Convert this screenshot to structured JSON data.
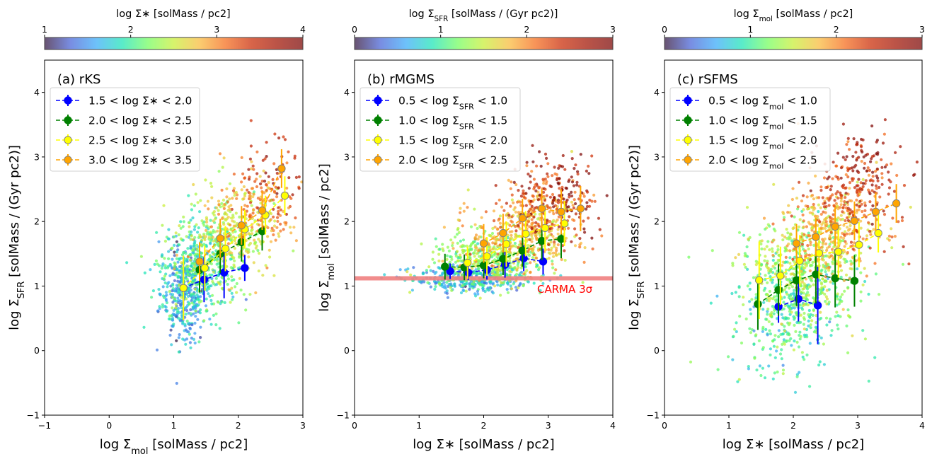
{
  "chart_data": [
    {
      "type": "scatter",
      "panel_label": "(a) rKS",
      "xlabel": "log Σmol [solMass / pc2]",
      "ylabel": "log ΣSFR [solMass / (Gyr pc2)]",
      "xlim": [
        -1,
        3
      ],
      "ylim": [
        -1,
        4.5
      ],
      "xticks": [
        -1,
        0,
        1,
        2,
        3
      ],
      "yticks": [
        -1,
        0,
        1,
        2,
        3,
        4
      ],
      "colorbar": {
        "label": "log Σ* [solMass / pc2]",
        "range": [
          1,
          4
        ],
        "ticks": [
          1,
          2,
          3,
          4
        ],
        "colormap": "turbo"
      },
      "legend_position": "upper-left",
      "grid": false,
      "scatter_cloud": {
        "color_range": [
          1,
          4
        ],
        "groups": [
          {
            "x_center": 1.15,
            "y_center": 0.9,
            "x_spread": 0.18,
            "y_spread": 0.35,
            "color_value": 1.6,
            "count": 350
          },
          {
            "x_center": 1.4,
            "y_center": 1.3,
            "x_spread": 0.3,
            "y_spread": 0.4,
            "color_value": 2.0,
            "count": 450
          },
          {
            "x_center": 1.9,
            "y_center": 1.8,
            "x_spread": 0.35,
            "y_spread": 0.35,
            "color_value": 2.5,
            "count": 300
          },
          {
            "x_center": 2.35,
            "y_center": 2.3,
            "x_spread": 0.3,
            "y_spread": 0.35,
            "color_value": 3.1,
            "count": 150
          },
          {
            "x_center": 2.55,
            "y_center": 2.8,
            "x_spread": 0.25,
            "y_spread": 0.35,
            "color_value": 3.6,
            "count": 40
          }
        ]
      },
      "series": [
        {
          "name": "1.5 < log Σ* < 2.0",
          "color": "#0000ff",
          "points": [
            {
              "x": 1.15,
              "y": 0.97,
              "err": 0.5
            },
            {
              "x": 1.47,
              "y": 1.1,
              "err": 0.35
            },
            {
              "x": 1.78,
              "y": 1.21,
              "err": 0.4
            },
            {
              "x": 2.1,
              "y": 1.28,
              "err": 0.2
            }
          ]
        },
        {
          "name": "2.0 < log Σ* < 2.5",
          "color": "#008000",
          "points": [
            {
              "x": 1.4,
              "y": 1.25,
              "err": 0.35
            },
            {
              "x": 1.72,
              "y": 1.5,
              "err": 0.3
            },
            {
              "x": 2.05,
              "y": 1.68,
              "err": 0.3
            },
            {
              "x": 2.37,
              "y": 1.85,
              "err": 0.3
            }
          ]
        },
        {
          "name": "2.5 < log Σ* < 3.0",
          "color": "#ffff00",
          "points": [
            {
              "x": 1.15,
              "y": 0.97,
              "err": 0.5
            },
            {
              "x": 1.48,
              "y": 1.28,
              "err": 0.35
            },
            {
              "x": 1.8,
              "y": 1.58,
              "err": 0.35
            },
            {
              "x": 2.1,
              "y": 1.88,
              "err": 0.3
            },
            {
              "x": 2.42,
              "y": 2.1,
              "err": 0.3
            },
            {
              "x": 2.72,
              "y": 2.4,
              "err": 0.3
            }
          ]
        },
        {
          "name": "3.0 < log Σ* < 3.5",
          "color": "#ffa500",
          "points": [
            {
              "x": 1.4,
              "y": 1.38,
              "err": 0.3
            },
            {
              "x": 1.72,
              "y": 1.74,
              "err": 0.3
            },
            {
              "x": 2.05,
              "y": 1.94,
              "err": 0.3
            },
            {
              "x": 2.37,
              "y": 2.17,
              "err": 0.3
            },
            {
              "x": 2.67,
              "y": 2.82,
              "err": 0.3
            }
          ]
        }
      ]
    },
    {
      "type": "scatter",
      "panel_label": "(b) rMGMS",
      "xlabel": "log Σ* [solMass / pc2]",
      "ylabel": "log Σmol [solMass / pc2]",
      "xlim": [
        0,
        4
      ],
      "ylim": [
        -1,
        4.5
      ],
      "xticks": [
        0,
        1,
        2,
        3,
        4
      ],
      "yticks": [
        -1,
        0,
        1,
        2,
        3,
        4
      ],
      "colorbar": {
        "label": "log ΣSFR [solMass / (Gyr pc2)]",
        "range": [
          0,
          3
        ],
        "ticks": [
          0,
          1,
          2,
          3
        ],
        "colormap": "turbo"
      },
      "legend_position": "upper-left",
      "grid": false,
      "hline": {
        "y": 1.12,
        "color": "#f08080"
      },
      "annotation": "CARMA 3σ",
      "scatter_cloud": {
        "color_range": [
          0,
          3
        ],
        "groups": [
          {
            "x_center": 1.8,
            "y_center": 1.1,
            "x_spread": 0.45,
            "y_spread": 0.1,
            "color_value": 0.7,
            "count": 350
          },
          {
            "x_center": 2.1,
            "y_center": 1.4,
            "x_spread": 0.45,
            "y_spread": 0.2,
            "color_value": 1.3,
            "count": 400
          },
          {
            "x_center": 2.6,
            "y_center": 1.8,
            "x_spread": 0.4,
            "y_spread": 0.3,
            "color_value": 1.8,
            "count": 350
          },
          {
            "x_center": 3.0,
            "y_center": 2.3,
            "x_spread": 0.35,
            "y_spread": 0.3,
            "color_value": 2.3,
            "count": 200
          },
          {
            "x_center": 3.2,
            "y_center": 2.5,
            "x_spread": 0.3,
            "y_spread": 0.35,
            "color_value": 2.9,
            "count": 80
          }
        ]
      },
      "series": [
        {
          "name": "0.5 < log ΣSFR < 1.0",
          "color": "#0000ff",
          "points": [
            {
              "x": 1.48,
              "y": 1.23,
              "err": 0.12
            },
            {
              "x": 1.76,
              "y": 1.21,
              "err": 0.12
            },
            {
              "x": 2.05,
              "y": 1.25,
              "err": 0.15
            },
            {
              "x": 2.33,
              "y": 1.33,
              "err": 0.2
            },
            {
              "x": 2.62,
              "y": 1.43,
              "err": 0.2
            },
            {
              "x": 2.92,
              "y": 1.38,
              "err": 0.2
            }
          ]
        },
        {
          "name": "1.0 < log ΣSFR < 1.5",
          "color": "#008000",
          "points": [
            {
              "x": 1.4,
              "y": 1.3,
              "err": 0.2
            },
            {
              "x": 1.7,
              "y": 1.29,
              "err": 0.2
            },
            {
              "x": 2.0,
              "y": 1.32,
              "err": 0.2
            },
            {
              "x": 2.3,
              "y": 1.42,
              "err": 0.25
            },
            {
              "x": 2.6,
              "y": 1.55,
              "err": 0.25
            },
            {
              "x": 2.9,
              "y": 1.7,
              "err": 0.3
            },
            {
              "x": 3.2,
              "y": 1.73,
              "err": 0.3
            }
          ]
        },
        {
          "name": "1.5 < log ΣSFR < 2.0",
          "color": "#ffff00",
          "points": [
            {
              "x": 1.75,
              "y": 1.36,
              "err": 0.25
            },
            {
              "x": 2.05,
              "y": 1.46,
              "err": 0.3
            },
            {
              "x": 2.35,
              "y": 1.65,
              "err": 0.35
            },
            {
              "x": 2.65,
              "y": 1.81,
              "err": 0.35
            },
            {
              "x": 2.95,
              "y": 1.9,
              "err": 0.35
            },
            {
              "x": 3.25,
              "y": 1.97,
              "err": 0.35
            }
          ]
        },
        {
          "name": "2.0 < log ΣSFR < 2.5",
          "color": "#ffa500",
          "points": [
            {
              "x": 2.0,
              "y": 1.66,
              "err": 0.3
            },
            {
              "x": 2.3,
              "y": 1.82,
              "err": 0.3
            },
            {
              "x": 2.6,
              "y": 2.05,
              "err": 0.3
            },
            {
              "x": 2.9,
              "y": 2.2,
              "err": 0.3
            },
            {
              "x": 3.2,
              "y": 2.15,
              "err": 0.35
            },
            {
              "x": 3.5,
              "y": 2.2,
              "err": 0.35
            }
          ]
        }
      ]
    },
    {
      "type": "scatter",
      "panel_label": "(c) rSFMS",
      "xlabel": "log Σ* [solMass / pc2]",
      "ylabel": "log ΣSFR [solMass / (Gyr pc2)]",
      "xlim": [
        0,
        4
      ],
      "ylim": [
        -1,
        4.5
      ],
      "xticks": [
        0,
        1,
        2,
        3,
        4
      ],
      "yticks": [
        -1,
        0,
        1,
        2,
        3,
        4
      ],
      "colorbar": {
        "label": "log Σmol [solMass / pc2]",
        "range": [
          0,
          3
        ],
        "ticks": [
          0,
          1,
          2,
          3
        ],
        "colormap": "turbo"
      },
      "legend_position": "upper-left",
      "grid": false,
      "scatter_cloud": {
        "color_range": [
          0,
          3
        ],
        "groups": [
          {
            "x_center": 1.9,
            "y_center": 0.5,
            "x_spread": 0.45,
            "y_spread": 0.45,
            "color_value": 1.0,
            "count": 300
          },
          {
            "x_center": 2.1,
            "y_center": 1.2,
            "x_spread": 0.45,
            "y_spread": 0.4,
            "color_value": 1.3,
            "count": 450
          },
          {
            "x_center": 2.5,
            "y_center": 1.8,
            "x_spread": 0.4,
            "y_spread": 0.35,
            "color_value": 1.8,
            "count": 350
          },
          {
            "x_center": 2.9,
            "y_center": 2.4,
            "x_spread": 0.35,
            "y_spread": 0.35,
            "color_value": 2.3,
            "count": 200
          },
          {
            "x_center": 3.1,
            "y_center": 2.8,
            "x_spread": 0.3,
            "y_spread": 0.35,
            "color_value": 2.8,
            "count": 70
          }
        ]
      },
      "series": [
        {
          "name": "0.5 < log Σmol < 1.0",
          "color": "#0000ff",
          "points": [
            {
              "x": 1.77,
              "y": 0.68,
              "err": 0.25
            },
            {
              "x": 2.08,
              "y": 0.8,
              "err": 0.35
            },
            {
              "x": 2.38,
              "y": 0.7,
              "err": 0.6
            }
          ]
        },
        {
          "name": "1.0 < log Σmol < 1.5",
          "color": "#008000",
          "points": [
            {
              "x": 1.45,
              "y": 0.72,
              "err": 0.4
            },
            {
              "x": 1.77,
              "y": 0.94,
              "err": 0.4
            },
            {
              "x": 2.05,
              "y": 1.09,
              "err": 0.4
            },
            {
              "x": 2.35,
              "y": 1.18,
              "err": 0.45
            },
            {
              "x": 2.65,
              "y": 1.12,
              "err": 0.45
            },
            {
              "x": 2.95,
              "y": 1.08,
              "err": 0.4
            }
          ]
        },
        {
          "name": "1.5 < log Σmol < 2.0",
          "color": "#ffff00",
          "points": [
            {
              "x": 1.47,
              "y": 1.09,
              "err": 0.6
            },
            {
              "x": 1.8,
              "y": 1.16,
              "err": 0.45
            },
            {
              "x": 2.1,
              "y": 1.39,
              "err": 0.4
            },
            {
              "x": 2.4,
              "y": 1.51,
              "err": 0.4
            },
            {
              "x": 2.7,
              "y": 1.53,
              "err": 0.4
            },
            {
              "x": 3.02,
              "y": 1.64,
              "err": 0.35
            },
            {
              "x": 3.32,
              "y": 1.82,
              "err": 0.3
            }
          ]
        },
        {
          "name": "2.0 < log Σmol < 2.5",
          "color": "#ffa500",
          "points": [
            {
              "x": 2.05,
              "y": 1.66,
              "err": 0.3
            },
            {
              "x": 2.35,
              "y": 1.76,
              "err": 0.3
            },
            {
              "x": 2.65,
              "y": 1.92,
              "err": 0.3
            },
            {
              "x": 2.95,
              "y": 2.01,
              "err": 0.3
            },
            {
              "x": 3.28,
              "y": 2.15,
              "err": 0.3
            },
            {
              "x": 3.6,
              "y": 2.28,
              "err": 0.3
            }
          ]
        }
      ]
    }
  ]
}
